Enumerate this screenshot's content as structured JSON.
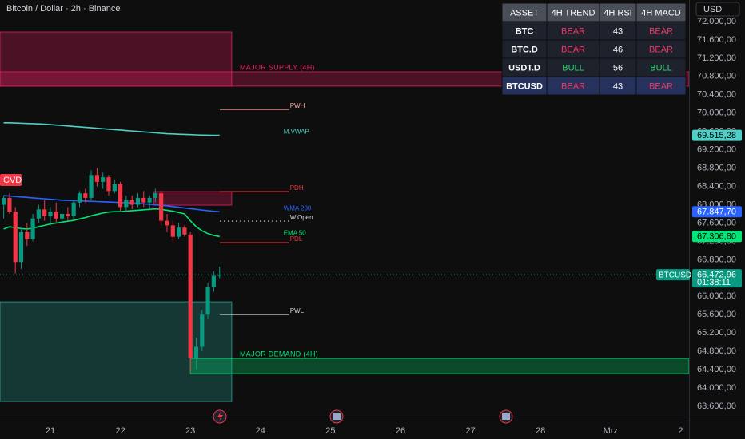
{
  "header": {
    "symbol": "Bitcoin / Dollar · 2h · Binance",
    "currency": "USD",
    "indicator": "CVD"
  },
  "chart_data": {
    "type": "candlestick",
    "x": [
      20.333,
      20.417,
      20.5,
      20.583,
      20.667,
      20.75,
      20.833,
      20.917,
      21.0,
      21.083,
      21.167,
      21.25,
      21.333,
      21.417,
      21.5,
      21.583,
      21.667,
      21.75,
      21.833,
      21.917,
      22.0,
      22.083,
      22.167,
      22.25,
      22.333,
      22.417,
      22.5,
      22.583,
      22.667,
      22.75,
      22.833,
      22.917,
      23.0,
      23.083,
      23.167,
      23.25,
      23.333,
      23.417
    ],
    "open": [
      68000,
      68150,
      67850,
      66750,
      67400,
      67250,
      67700,
      67900,
      67750,
      67850,
      67700,
      67800,
      67750,
      68050,
      68250,
      68150,
      68650,
      68500,
      68600,
      68300,
      68450,
      67950,
      68100,
      68000,
      68150,
      68050,
      68150,
      68250,
      67650,
      67550,
      67300,
      67500,
      67350,
      64650,
      64900,
      65600,
      66200,
      66450
    ],
    "high": [
      68200,
      68250,
      67950,
      67500,
      67600,
      67800,
      68000,
      68100,
      67950,
      68050,
      67900,
      67950,
      68100,
      68300,
      68350,
      68750,
      68800,
      68700,
      68650,
      68550,
      68500,
      68200,
      68200,
      68250,
      68300,
      68200,
      68350,
      68300,
      67800,
      67650,
      67600,
      67550,
      67400,
      65100,
      65700,
      66300,
      66550,
      66650
    ],
    "low": [
      67700,
      67800,
      66500,
      66600,
      67100,
      67200,
      67600,
      67650,
      67550,
      67600,
      67600,
      67650,
      67700,
      67950,
      68050,
      68100,
      68400,
      68350,
      68200,
      68250,
      67850,
      67850,
      67900,
      67950,
      67950,
      67900,
      68050,
      67550,
      67400,
      67200,
      67250,
      67300,
      64350,
      64400,
      64800,
      65500,
      66100,
      66400
    ],
    "close": [
      68150,
      67850,
      66750,
      67400,
      67250,
      67700,
      67900,
      67750,
      67850,
      67700,
      67800,
      67750,
      68050,
      68250,
      68150,
      68650,
      68500,
      68600,
      68300,
      68450,
      67950,
      68100,
      68000,
      68150,
      68050,
      68150,
      68250,
      67650,
      67550,
      67300,
      67500,
      67350,
      64650,
      64900,
      65600,
      66200,
      66450,
      66472.96
    ],
    "up_color": "#089981",
    "down_color": "#f23645",
    "xlim": [
      20.281,
      30.121
    ],
    "xticks": [
      21,
      22,
      23,
      24,
      25,
      26,
      27,
      28,
      {
        "value": 29,
        "label": "Mrz"
      },
      {
        "value": 30,
        "label": "2"
      }
    ],
    "ylim": [
      63374,
      72470
    ],
    "yticks": [
      {
        "value": 72000,
        "label": "72.000,00"
      },
      {
        "value": 71600,
        "label": "71.600,00"
      },
      {
        "value": 71200,
        "label": "71.200,00"
      },
      {
        "value": 70800,
        "label": "70.800,00"
      },
      {
        "value": 70400,
        "label": "70.400,00"
      },
      {
        "value": 70000,
        "label": "70.000,00"
      },
      {
        "value": 69600,
        "label": "69.600,00"
      },
      {
        "value": 69200,
        "label": "69.200,00"
      },
      {
        "value": 68800,
        "label": "68.800,00"
      },
      {
        "value": 68400,
        "label": "68.400,00"
      },
      {
        "value": 68000,
        "label": "68.000,00"
      },
      {
        "value": 67600,
        "label": "67.600,00"
      },
      {
        "value": 67200,
        "label": "67.200,00"
      },
      {
        "value": 66800,
        "label": "66.800,00"
      },
      {
        "value": 66400,
        "label": "66.400,00"
      },
      {
        "value": 66000,
        "label": "66.000,00"
      },
      {
        "value": 65600,
        "label": "65.600,00"
      },
      {
        "value": 65200,
        "label": "65.200,00"
      },
      {
        "value": 64800,
        "label": "64.800,00"
      },
      {
        "value": 64400,
        "label": "64.400,00"
      },
      {
        "value": 64000,
        "label": "64.000,00"
      },
      {
        "value": 63600,
        "label": "63.600,00"
      }
    ],
    "lines": [
      {
        "name": "M.VWAP",
        "color": "#4dd0c8",
        "values": [
          69790,
          69790,
          69785,
          69780,
          69775,
          69770,
          69765,
          69760,
          69750,
          69740,
          69730,
          69720,
          69710,
          69700,
          69690,
          69680,
          69670,
          69660,
          69650,
          69640,
          69630,
          69620,
          69610,
          69600,
          69590,
          69580,
          69570,
          69560,
          69550,
          69545,
          69540,
          69535,
          69530,
          69525,
          69520,
          69518,
          69516,
          69515.28
        ]
      },
      {
        "name": "WMA 200",
        "color": "#2962ff",
        "values": [
          68200,
          68190,
          68180,
          68170,
          68160,
          68150,
          68140,
          68130,
          68120,
          68110,
          68100,
          68095,
          68090,
          68085,
          68080,
          68075,
          68070,
          68065,
          68060,
          68055,
          68050,
          68045,
          68040,
          68030,
          68020,
          68010,
          68000,
          67990,
          67975,
          67960,
          67945,
          67930,
          67915,
          67900,
          67885,
          67870,
          67858,
          67847.7
        ]
      },
      {
        "name": "EMA 50",
        "color": "#00e676",
        "values": [
          67470,
          67520,
          67500,
          67480,
          67470,
          67490,
          67520,
          67550,
          67580,
          67600,
          67620,
          67640,
          67660,
          67690,
          67720,
          67760,
          67790,
          67820,
          67840,
          67850,
          67850,
          67860,
          67870,
          67880,
          67890,
          67900,
          67910,
          67900,
          67880,
          67860,
          67830,
          67800,
          67650,
          67520,
          67430,
          67370,
          67330,
          67306.8
        ]
      }
    ],
    "zones": [
      {
        "low": 70590,
        "high": 71773,
        "x_start": 20.281,
        "x_end": 23.59,
        "color": "#e91e63"
      },
      {
        "label": "MAJOR SUPPLY (4H)",
        "low": 70590,
        "high": 70902,
        "x_start": 20.281,
        "x_end": 30.121,
        "color": "#e91e63"
      },
      {
        "low": 67991,
        "high": 68287,
        "x_start": 22.48,
        "x_end": 23.59,
        "color": "#e91e63"
      },
      {
        "low": 63703,
        "high": 65882,
        "x_start": 20.281,
        "x_end": 23.59,
        "color": "#26a69a"
      },
      {
        "label": "MAJOR DEMAND (4H)",
        "low": 64313,
        "high": 64645,
        "x_start": 23.0,
        "x_end": 30.121,
        "color": "#00e676"
      }
    ],
    "levels": [
      {
        "label": "PWH",
        "value": 70083,
        "x_start": 23.42,
        "x_end": 24.41,
        "color": "#f7a8a8"
      },
      {
        "label": "PDH",
        "value": 68287,
        "x_start": 23.42,
        "x_end": 24.41,
        "color": "#f23645"
      },
      {
        "label": "W.Open",
        "value": 67642,
        "x_start": 23.42,
        "x_end": 24.41,
        "color": "#d1d4dc",
        "dashed": true
      },
      {
        "label": "PDL",
        "value": 67172,
        "x_start": 23.42,
        "x_end": 24.41,
        "color": "#f23645"
      },
      {
        "label": "PWL",
        "value": 65603,
        "x_start": 23.42,
        "x_end": 24.41,
        "color": "#d1d4dc"
      }
    ],
    "price_tags": [
      {
        "value": 69515.28,
        "label": "69.515,28",
        "color": "#4dd0c8"
      },
      {
        "value": 67847.7,
        "label": "67.847,70",
        "color": "#2962ff"
      },
      {
        "value": 67306.8,
        "label": "67.306,80",
        "color": "#00e676"
      }
    ],
    "last_price": {
      "name": "BTCUSD",
      "value": 66472.96,
      "label": "66.472,96",
      "countdown": "01:38:11",
      "color": "#089981"
    }
  },
  "table": {
    "header": [
      "ASSET",
      "4H TREND",
      "4H RSI",
      "4H MACD"
    ],
    "rows": [
      [
        "BTC",
        "BEAR",
        43,
        "BEAR"
      ],
      [
        "BTC.D",
        "BEAR",
        46,
        "BEAR"
      ],
      [
        "USDT.D",
        "BULL",
        56,
        "BULL"
      ],
      [
        "BTCUSD",
        "BEAR",
        43,
        "BEAR"
      ]
    ],
    "colors": {
      "BEAR": "#f23667",
      "BULL": "#2ed573"
    }
  }
}
